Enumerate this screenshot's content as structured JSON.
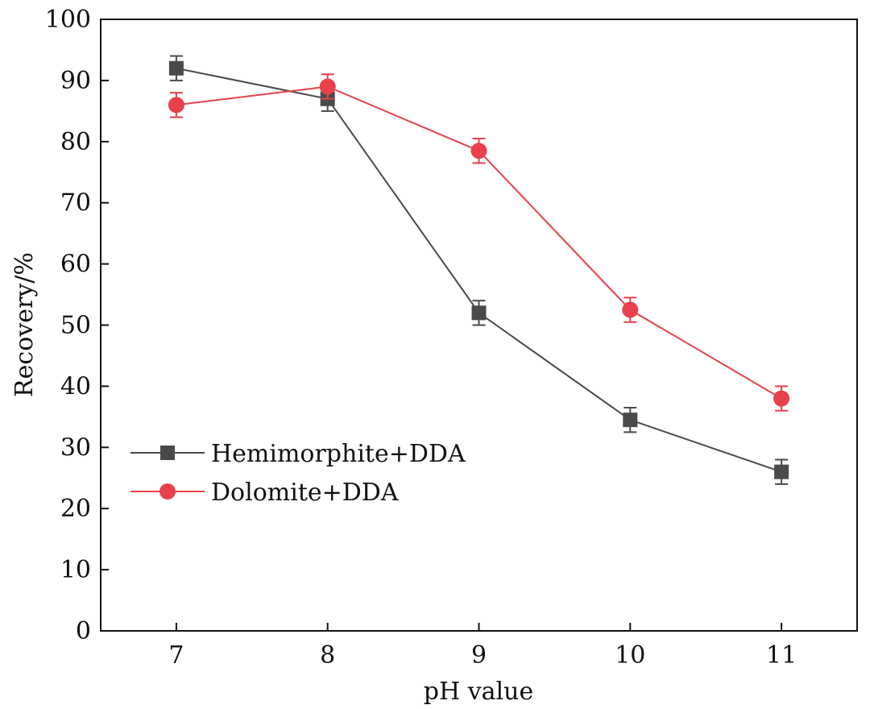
{
  "chart_data": {
    "type": "line",
    "title": "",
    "xlabel": "pH value",
    "ylabel": "Recovery/%",
    "x": [
      7,
      8,
      9,
      10,
      11
    ],
    "x_tick_labels": [
      "7",
      "8",
      "9",
      "10",
      "11"
    ],
    "xlim": [
      6.5,
      11.5
    ],
    "ylim": [
      0,
      100
    ],
    "y_ticks": [
      0,
      10,
      20,
      30,
      40,
      50,
      60,
      70,
      80,
      90,
      100
    ],
    "y_tick_labels": [
      "0",
      "10",
      "20",
      "30",
      "40",
      "50",
      "60",
      "70",
      "80",
      "90",
      "100"
    ],
    "grid": false,
    "legend_position": "center-left",
    "series": [
      {
        "name": "Hemimorphite+DDA",
        "marker": "square",
        "color": "#4a4a4a",
        "values": [
          92,
          87,
          52,
          34.5,
          26
        ],
        "errors": [
          2,
          2,
          2,
          2,
          2
        ]
      },
      {
        "name": "Dolomite+DDA",
        "marker": "circle",
        "color": "#e8414b",
        "values": [
          86,
          89,
          78.5,
          52.5,
          38
        ],
        "errors": [
          2,
          2,
          2,
          2,
          2
        ]
      }
    ]
  }
}
